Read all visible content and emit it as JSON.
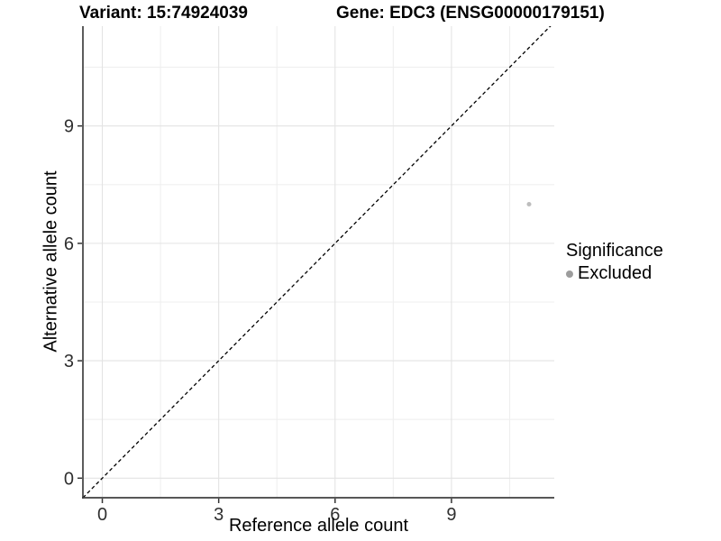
{
  "chart_data": {
    "type": "scatter",
    "title_left": "Variant: 15:74924039",
    "title_right": "Gene: EDC3 (ENSG00000179151)",
    "xlabel": "Reference allele count",
    "ylabel": "Alternative allele count",
    "xlim": [
      -0.5,
      11.65
    ],
    "ylim": [
      -0.5,
      11.55
    ],
    "xticks": [
      0,
      3,
      6,
      9
    ],
    "yticks": [
      0,
      3,
      6,
      9
    ],
    "xticks_minor": [
      1.5,
      4.5,
      7.5,
      10.5
    ],
    "yticks_minor": [
      1.5,
      4.5,
      7.5,
      10.5
    ],
    "grid": "major+minor",
    "identity_line": {
      "slope": 1,
      "intercept": 0,
      "style": "dashed"
    },
    "series": [
      {
        "name": "Excluded",
        "color": "#bdbdbd",
        "point_radius": 2.5,
        "points": [
          [
            11,
            7
          ]
        ]
      }
    ],
    "legend": {
      "title": "Significance",
      "position": "right",
      "items": [
        {
          "label": "Excluded",
          "swatch_color": "#9d9d9d"
        }
      ]
    },
    "colors": {
      "background": "#ffffff",
      "grid_major": "#e3e3e3",
      "grid_minor": "#efefef",
      "axis_line": "#3f3f3f",
      "tick_mark": "#333333",
      "tick_label": "#2f2f2f",
      "title": "#000000",
      "identity_line": "#000000"
    }
  }
}
